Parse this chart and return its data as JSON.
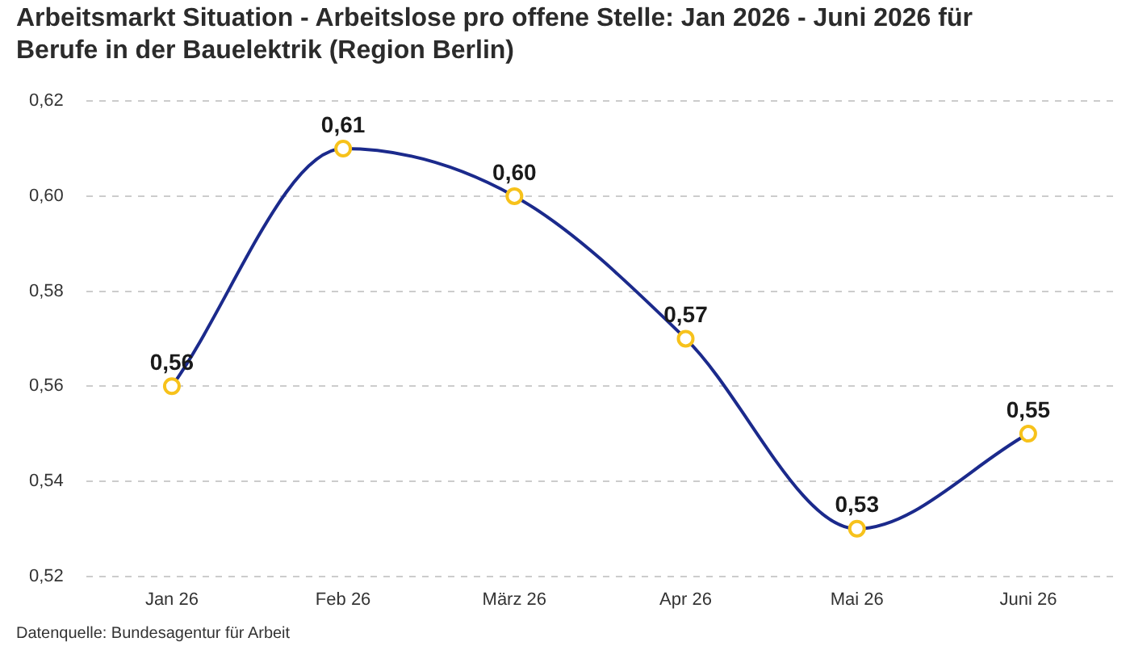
{
  "chart_data": {
    "type": "line",
    "title": "Arbeitsmarkt Situation - Arbeitslose pro offene Stelle: Jan 2026 - Juni 2026 für Berufe in der Bauelektrik (Region Berlin)",
    "categories": [
      "Jan 26",
      "Feb 26",
      "März 26",
      "Apr 26",
      "Mai 26",
      "Juni 26"
    ],
    "values": [
      0.56,
      0.61,
      0.6,
      0.57,
      0.53,
      0.55
    ],
    "color": "#1b2a8c",
    "value_labels": [
      "0,56",
      "0,61",
      "0,60",
      "0,57",
      "0,53",
      "0,55"
    ],
    "ylim": [
      0.52,
      0.62
    ],
    "yticks": [
      {
        "value": 0.52,
        "label": "0,52"
      },
      {
        "value": 0.54,
        "label": "0,54"
      },
      {
        "value": 0.56,
        "label": "0,56"
      },
      {
        "value": 0.58,
        "label": "0,58"
      },
      {
        "value": 0.6,
        "label": "0,60"
      },
      {
        "value": 0.62,
        "label": "0,62"
      }
    ],
    "grid": "y",
    "legend": false,
    "marker": "circle",
    "annotations": [
      "Datenquelle: Bundesagentur für Arbeit"
    ]
  }
}
